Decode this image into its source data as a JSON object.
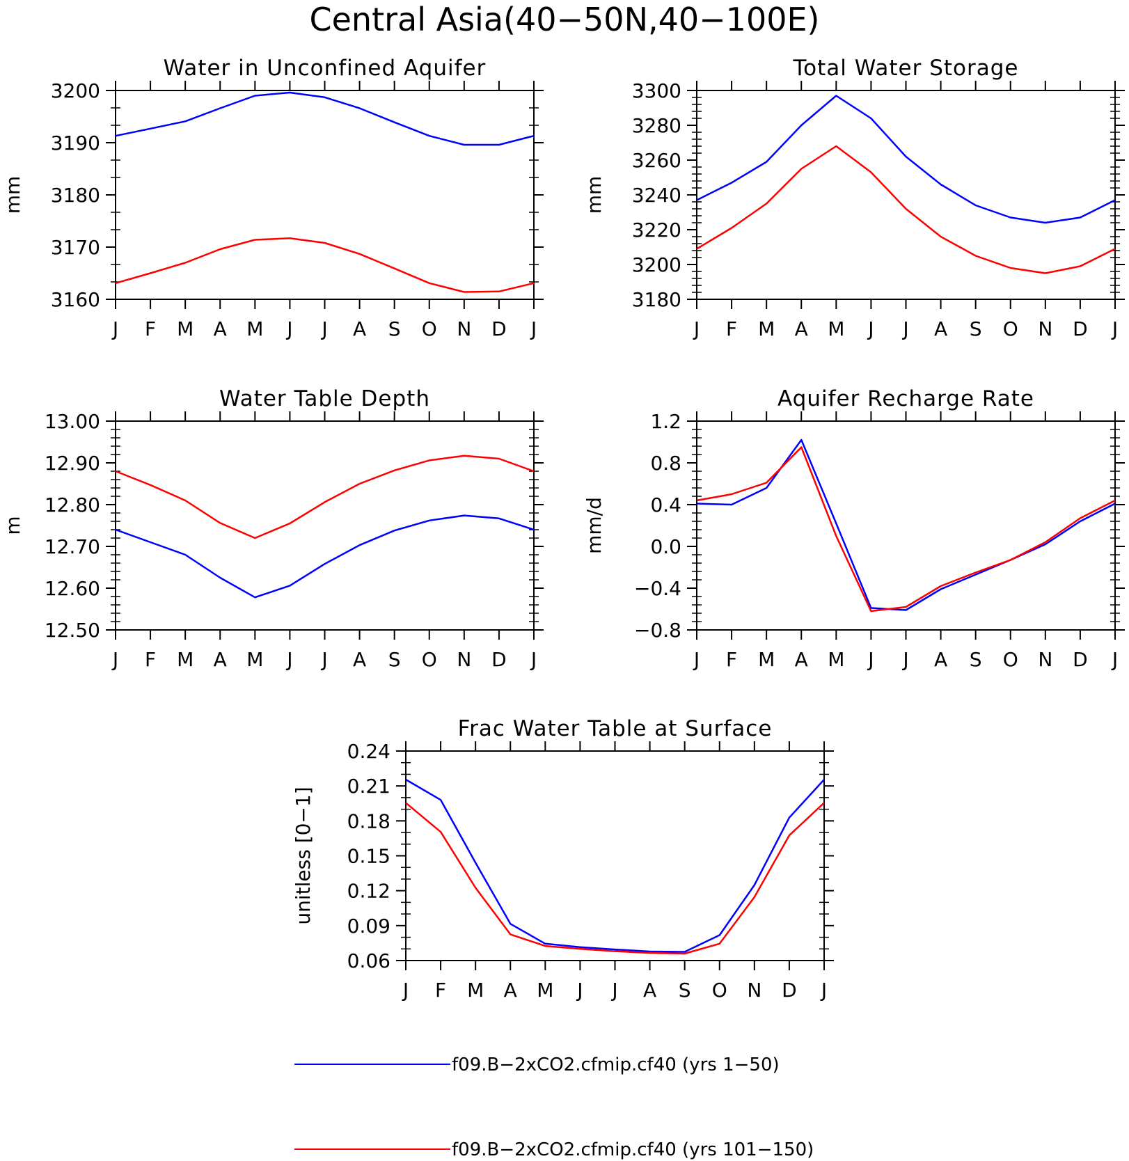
{
  "title": "Central Asia(40−50N,40−100E)",
  "months": [
    "J",
    "F",
    "M",
    "A",
    "M",
    "J",
    "J",
    "A",
    "S",
    "O",
    "N",
    "D",
    "J"
  ],
  "colors": {
    "series1": "#0000ff",
    "series2": "#ff0000"
  },
  "legend": [
    {
      "label": "f09.B−2xCO2.cfmip.cf40 (yrs 1−50)",
      "color": "#0000ff"
    },
    {
      "label": "f09.B−2xCO2.cfmip.cf40 (yrs 101−150)",
      "color": "#ff0000"
    }
  ],
  "chart_data": [
    {
      "type": "line",
      "title": "Water in Unconfined Aquifer",
      "ylabel": "mm",
      "ylim": [
        3160,
        3200
      ],
      "yticks": [
        3160,
        3170,
        3180,
        3190,
        3200
      ],
      "yticklabels": [
        "3160",
        "3170",
        "3180",
        "3190",
        "3200"
      ],
      "yminor": 2,
      "series": [
        {
          "color": "#0000ff",
          "values": [
            3191.3,
            3192.7,
            3194.1,
            3196.6,
            3199.0,
            3199.6,
            3198.7,
            3196.6,
            3193.9,
            3191.3,
            3189.6,
            3189.6,
            3191.3
          ]
        },
        {
          "color": "#ff0000",
          "values": [
            3163.1,
            3165.0,
            3167.0,
            3169.6,
            3171.4,
            3171.7,
            3170.8,
            3168.7,
            3165.9,
            3163.1,
            3161.4,
            3161.5,
            3163.1
          ]
        }
      ]
    },
    {
      "type": "line",
      "title": "Total Water Storage",
      "ylabel": "mm",
      "ylim": [
        3180,
        3300
      ],
      "yticks": [
        3180,
        3200,
        3220,
        3240,
        3260,
        3280,
        3300
      ],
      "yticklabels": [
        "3180",
        "3200",
        "3220",
        "3240",
        "3260",
        "3280",
        "3300"
      ],
      "yminor": 4,
      "series": [
        {
          "color": "#0000ff",
          "values": [
            3237,
            3247,
            3259,
            3280,
            3297,
            3284,
            3262,
            3246,
            3234,
            3227,
            3224,
            3227,
            3237
          ]
        },
        {
          "color": "#ff0000",
          "values": [
            3209,
            3221,
            3235,
            3255,
            3268,
            3253,
            3232,
            3216,
            3205,
            3198,
            3195,
            3199,
            3209
          ]
        }
      ]
    },
    {
      "type": "line",
      "title": "Water Table Depth",
      "ylabel": "m",
      "ylim": [
        12.5,
        13.0
      ],
      "yticks": [
        12.5,
        12.6,
        12.7,
        12.8,
        12.9,
        13.0
      ],
      "yticklabels": [
        "12.50",
        "12.60",
        "12.70",
        "12.80",
        "12.90",
        "13.00"
      ],
      "yminor": 4,
      "series": [
        {
          "color": "#0000ff",
          "values": [
            12.74,
            12.71,
            12.68,
            12.625,
            12.578,
            12.606,
            12.658,
            12.703,
            12.738,
            12.762,
            12.774,
            12.767,
            12.74
          ]
        },
        {
          "color": "#ff0000",
          "values": [
            12.88,
            12.847,
            12.81,
            12.756,
            12.72,
            12.755,
            12.806,
            12.85,
            12.882,
            12.906,
            12.917,
            12.91,
            12.88
          ]
        }
      ]
    },
    {
      "type": "line",
      "title": "Aquifer Recharge Rate",
      "ylabel": "mm/d",
      "ylim": [
        -0.8,
        1.2
      ],
      "yticks": [
        -0.8,
        -0.4,
        0.0,
        0.4,
        0.8,
        1.2
      ],
      "yticklabels": [
        "−0.8",
        "−0.4",
        "0.0",
        "0.4",
        "0.8",
        "1.2"
      ],
      "yminor": 4,
      "series": [
        {
          "color": "#0000ff",
          "values": [
            0.41,
            0.4,
            0.56,
            1.02,
            0.22,
            -0.59,
            -0.61,
            -0.41,
            -0.27,
            -0.13,
            0.02,
            0.24,
            0.41
          ]
        },
        {
          "color": "#ff0000",
          "values": [
            0.44,
            0.5,
            0.61,
            0.95,
            0.1,
            -0.62,
            -0.58,
            -0.38,
            -0.25,
            -0.13,
            0.04,
            0.27,
            0.44
          ]
        }
      ]
    },
    {
      "type": "line",
      "title": "Frac Water Table at Surface",
      "ylabel": "unitless [0−1]",
      "ylim": [
        0.06,
        0.24
      ],
      "yticks": [
        0.06,
        0.09,
        0.12,
        0.15,
        0.18,
        0.21,
        0.24
      ],
      "yticklabels": [
        "0.06",
        "0.09",
        "0.12",
        "0.15",
        "0.18",
        "0.21",
        "0.24"
      ],
      "yminor": 2,
      "series": [
        {
          "color": "#0000ff",
          "values": [
            0.2155,
            0.198,
            0.144,
            0.0915,
            0.0745,
            0.0715,
            0.0695,
            0.0678,
            0.0675,
            0.0818,
            0.1248,
            0.1828,
            0.2155
          ]
        },
        {
          "color": "#ff0000",
          "values": [
            0.1955,
            0.1705,
            0.1225,
            0.0825,
            0.0725,
            0.07,
            0.068,
            0.0665,
            0.066,
            0.0745,
            0.1145,
            0.1675,
            0.1955
          ]
        }
      ]
    }
  ]
}
